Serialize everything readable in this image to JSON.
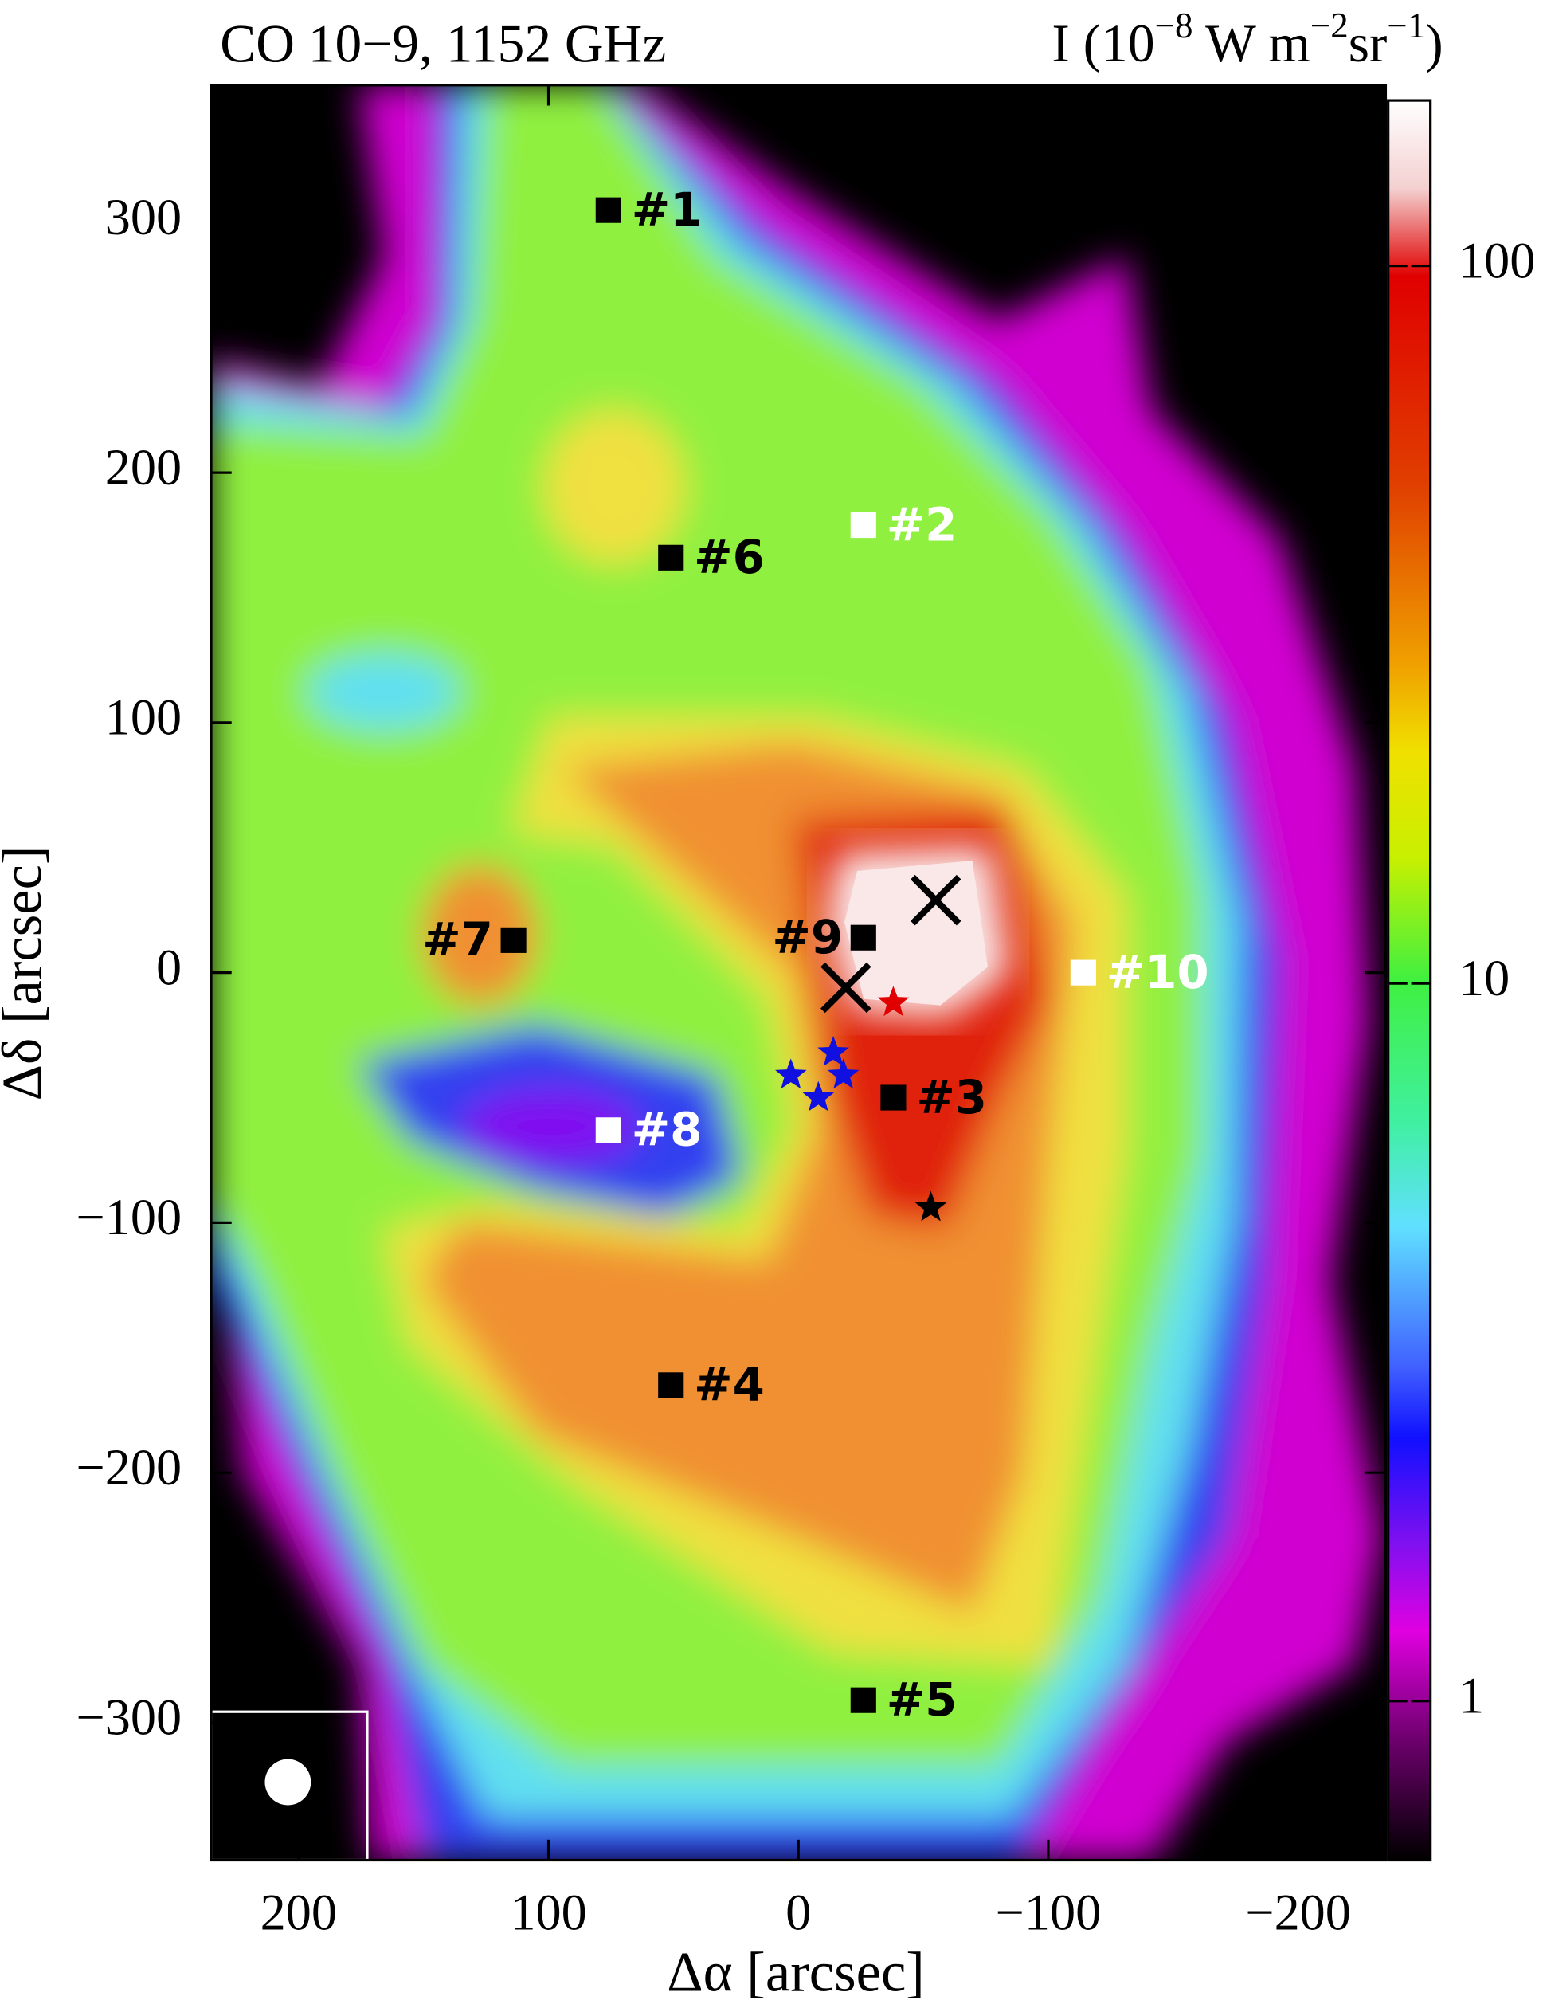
{
  "chart_data": {
    "type": "scatter",
    "title": "CO 10−9, 1152 GHz",
    "colorbar_label": [
      "I (10",
      "−8",
      " W m",
      "−2",
      "sr",
      "−1",
      ")"
    ],
    "xlabel": "Δα [arcsec]",
    "ylabel": "Δδ [arcsec]",
    "xlim": [
      235,
      -235
    ],
    "ylim": [
      -355,
      355
    ],
    "xticks": [
      200,
      100,
      0,
      {
        "value": -100,
        "label": "−100"
      },
      {
        "value": -200,
        "label": "−200"
      }
    ],
    "yticks": [
      300,
      200,
      100,
      0,
      {
        "value": -100,
        "label": "−100"
      },
      {
        "value": -200,
        "label": "−200"
      },
      {
        "value": -300,
        "label": "−300"
      }
    ],
    "colorbar": {
      "scale": "log",
      "lim": [
        0.6,
        170
      ],
      "ticks": [
        1,
        10,
        100
      ]
    },
    "positions": {
      "labels": [
        "#1",
        "#2",
        "#3",
        "#4",
        "#5",
        "#6",
        "#7",
        "#8",
        "#9",
        "#10"
      ],
      "x": [
        76,
        -26,
        -38,
        51,
        -26,
        51,
        114,
        76,
        -26,
        -114
      ],
      "y": [
        305,
        179,
        -50,
        -165,
        -291,
        166,
        13,
        -63,
        14,
        0
      ],
      "colors": [
        "#000000",
        "#ffffff",
        "#000000",
        "#000000",
        "#000000",
        "#000000",
        "#000000",
        "#ffffff",
        "#000000",
        "#ffffff"
      ],
      "label_side": [
        "right",
        "right",
        "right",
        "right",
        "right",
        "right",
        "left",
        "right",
        "left",
        "right"
      ]
    },
    "crosses": {
      "x": [
        -55,
        -19
      ],
      "y": [
        29,
        -6
      ],
      "color": "#000000"
    },
    "stars": {
      "x": [
        -38,
        -53,
        3,
        -14,
        -18,
        -8
      ],
      "y": [
        -12,
        -94,
        -41,
        -32,
        -41,
        -50
      ],
      "colors": [
        "#e00000",
        "#000000",
        "#1010e0",
        "#1010e0",
        "#1010e0",
        "#1010e0"
      ]
    }
  }
}
